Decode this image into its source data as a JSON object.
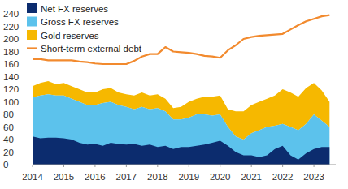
{
  "chart_data": {
    "type": "area",
    "x": [
      2014,
      2014.25,
      2014.5,
      2014.75,
      2015,
      2015.25,
      2015.5,
      2015.75,
      2016,
      2016.25,
      2016.5,
      2016.75,
      2017,
      2017.25,
      2017.5,
      2017.75,
      2018,
      2018.25,
      2018.5,
      2018.75,
      2019,
      2019.25,
      2019.5,
      2019.75,
      2020,
      2020.25,
      2020.5,
      2020.75,
      2021,
      2021.25,
      2021.5,
      2021.75,
      2022,
      2022.25,
      2022.5,
      2022.75,
      2023,
      2023.25,
      2023.5
    ],
    "series": [
      {
        "name": "Net FX reserves",
        "type": "area",
        "color": "#0c2c6e",
        "values": [
          45,
          42,
          43,
          43,
          42,
          40,
          35,
          32,
          33,
          30,
          35,
          33,
          32,
          33,
          30,
          32,
          28,
          30,
          25,
          28,
          28,
          30,
          32,
          35,
          38,
          30,
          20,
          15,
          15,
          12,
          15,
          25,
          30,
          15,
          8,
          18,
          25,
          28,
          28
        ]
      },
      {
        "name": "Gross FX reserves",
        "type": "area",
        "color": "#5cc2ec",
        "values": [
          107,
          110,
          112,
          110,
          110,
          105,
          100,
          95,
          95,
          98,
          100,
          95,
          92,
          88,
          92,
          88,
          90,
          85,
          72,
          72,
          75,
          80,
          80,
          78,
          80,
          60,
          45,
          40,
          50,
          55,
          60,
          62,
          65,
          60,
          55,
          65,
          80,
          70,
          60
        ]
      },
      {
        "name": "Gold reserves",
        "type": "stacked_area",
        "color": "#f6b800",
        "values": [
          18,
          20,
          21,
          18,
          20,
          20,
          20,
          20,
          20,
          22,
          22,
          20,
          20,
          22,
          23,
          22,
          22,
          20,
          18,
          20,
          25,
          25,
          28,
          30,
          30,
          28,
          40,
          45,
          45,
          45,
          45,
          48,
          55,
          55,
          53,
          57,
          50,
          48,
          40
        ]
      },
      {
        "name": "Short-term external debt",
        "type": "line",
        "color": "#f28a2e",
        "values": [
          168,
          168,
          166,
          166,
          166,
          166,
          164,
          163,
          161,
          160,
          160,
          160,
          160,
          165,
          172,
          176,
          176,
          187,
          180,
          179,
          178,
          176,
          173,
          172,
          170,
          182,
          190,
          200,
          203,
          205,
          206,
          207,
          208,
          215,
          222,
          228,
          232,
          236,
          238
        ]
      }
    ],
    "xlim": [
      2014,
      2023.7
    ],
    "xticks": [
      2014,
      2015,
      2016,
      2017,
      2018,
      2019,
      2020,
      2021,
      2022,
      2023
    ],
    "ylim": [
      0,
      240
    ],
    "yticks": [
      0,
      20,
      40,
      60,
      80,
      100,
      120,
      140,
      160,
      180,
      200,
      220,
      240
    ],
    "grid": false,
    "legend": "top-left"
  }
}
